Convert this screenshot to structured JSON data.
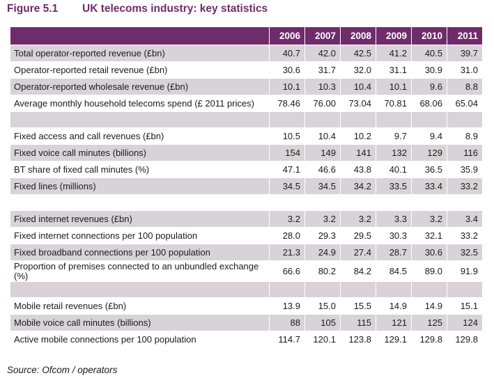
{
  "figure": {
    "number": "Figure 5.1",
    "title": "UK telecoms industry: key statistics"
  },
  "table": {
    "years": [
      "2006",
      "2007",
      "2008",
      "2009",
      "2010",
      "2011"
    ],
    "groups": [
      {
        "rows": [
          {
            "label": "Total operator-reported revenue (£bn)",
            "values": [
              "40.7",
              "42.0",
              "42.5",
              "41.2",
              "40.5",
              "39.7"
            ]
          },
          {
            "label": "Operator-reported retail revenue (£bn)",
            "values": [
              "30.6",
              "31.7",
              "32.0",
              "31.1",
              "30.9",
              "31.0"
            ]
          },
          {
            "label": "Operator-reported wholesale revenue (£bn)",
            "values": [
              "10.1",
              "10.3",
              "10.4",
              "10.1",
              "9.6",
              "8.8"
            ]
          },
          {
            "label": "Average monthly household telecoms spend (£ 2011 prices)",
            "values": [
              "78.46",
              "76.00",
              "73.04",
              "70.81",
              "68.06",
              "65.04"
            ]
          }
        ]
      },
      {
        "rows": [
          {
            "label": "Fixed access and call revenues (£bn)",
            "values": [
              "10.5",
              "10.4",
              "10.2",
              "9.7",
              "9.4",
              "8.9"
            ]
          },
          {
            "label": "Fixed voice call minutes (billions)",
            "values": [
              "154",
              "149",
              "141",
              "132",
              "129",
              "116"
            ]
          },
          {
            "label": "BT share of fixed call minutes (%)",
            "values": [
              "47.1",
              "46.6",
              "43.8",
              "40.1",
              "36.5",
              "35.9"
            ]
          },
          {
            "label": "Fixed lines (millions)",
            "values": [
              "34.5",
              "34.5",
              "34.2",
              "33.5",
              "33.4",
              "33.2"
            ]
          }
        ]
      },
      {
        "rows": [
          {
            "label": "Fixed internet revenues (£bn)",
            "values": [
              "3.2",
              "3.2",
              "3.2",
              "3.3",
              "3.2",
              "3.4"
            ]
          },
          {
            "label": "Fixed internet connections per 100 population",
            "values": [
              "28.0",
              "29.3",
              "29.5",
              "30.3",
              "32.1",
              "33.2"
            ]
          },
          {
            "label": "Fixed broadband connections per 100 population",
            "values": [
              "21.3",
              "24.9",
              "27.4",
              "28.7",
              "30.6",
              "32.5"
            ]
          },
          {
            "label": "Proportion of premises connected to an unbundled exchange (%)",
            "values": [
              "66.6",
              "80.2",
              "84.2",
              "84.5",
              "89.0",
              "91.9"
            ]
          }
        ]
      },
      {
        "rows": [
          {
            "label": "Mobile retail revenues (£bn)",
            "values": [
              "13.9",
              "15.0",
              "15.5",
              "14.9",
              "14.9",
              "15.1"
            ]
          },
          {
            "label": "Mobile voice call minutes (billions)",
            "values": [
              "88",
              "105",
              "115",
              "121",
              "125",
              "124"
            ]
          },
          {
            "label": "Active mobile connections per 100 population",
            "values": [
              "114.7",
              "120.1",
              "123.8",
              "129.1",
              "129.8",
              "129.8"
            ]
          }
        ]
      }
    ]
  },
  "source": "Source: Ofcom / operators",
  "colors": {
    "accent": "#6e2c6b",
    "row_shade": "#d9d3d9"
  }
}
